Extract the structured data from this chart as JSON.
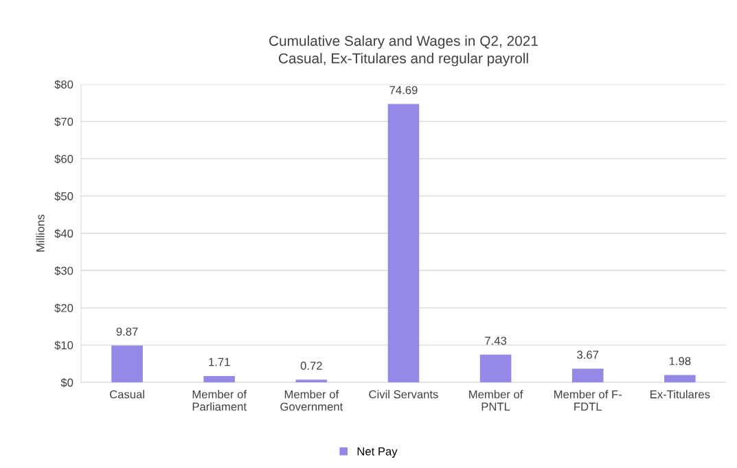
{
  "chart_data": {
    "type": "bar",
    "title": "Cumulative Salary and Wages in Q2, 2021\nCasual, Ex-Titulares and regular payroll",
    "ylabel": "Millions",
    "categories": [
      "Casual",
      "Member of\nParliament",
      "Member of\nGovernment",
      "Civil Servants",
      "Member of\nPNTL",
      "Member of F-\nFDTL",
      "Ex-Titulares"
    ],
    "series": [
      {
        "name": "Net Pay",
        "color": "#9589e8",
        "values": [
          9.87,
          1.71,
          0.72,
          74.69,
          7.43,
          3.67,
          1.98
        ]
      }
    ],
    "ylim": [
      0,
      80
    ],
    "yticks": [
      {
        "value": 0,
        "label": "$0"
      },
      {
        "value": 10,
        "label": "$10"
      },
      {
        "value": 20,
        "label": "$20"
      },
      {
        "value": 30,
        "label": "$30"
      },
      {
        "value": 40,
        "label": "$40"
      },
      {
        "value": 50,
        "label": "$50"
      },
      {
        "value": 60,
        "label": "$60"
      },
      {
        "value": 70,
        "label": "$70"
      },
      {
        "value": 80,
        "label": "$80"
      }
    ],
    "grid": "y",
    "legend": "bottom",
    "data_labels": true
  }
}
